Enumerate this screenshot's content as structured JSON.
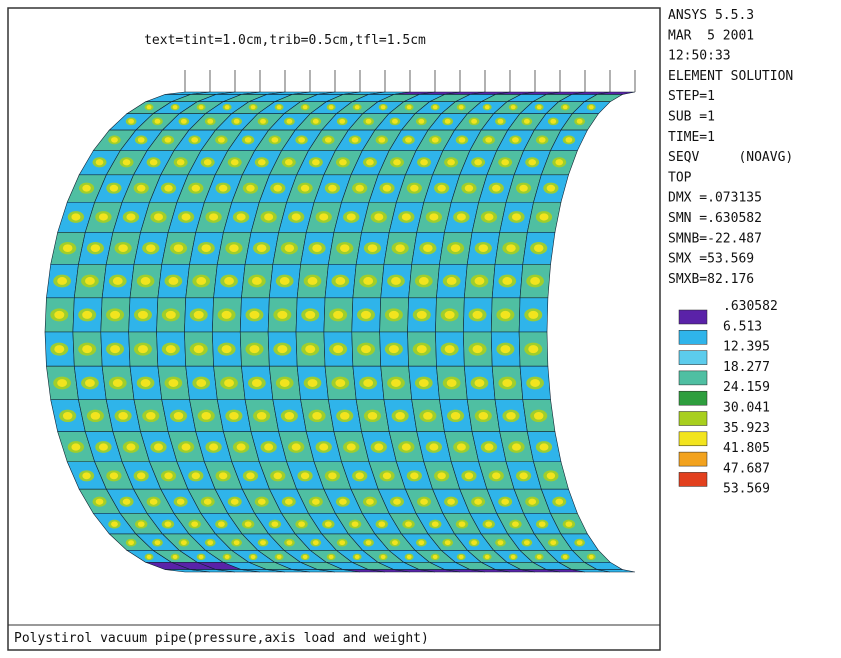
{
  "plot": {
    "label": "text=tint=1.0cm,trib=0.5cm,tfl=1.5cm",
    "caption": "Polystirol vacuum pipe(pressure,axis load and weight)"
  },
  "info": [
    "ANSYS 5.5.3",
    "MAR  5 2001",
    "12:50:33",
    "ELEMENT SOLUTION",
    "STEP=1",
    "SUB =1",
    "TIME=1",
    "SEQV     (NOAVG)",
    "TOP",
    "DMX =.073135",
    "SMN =.630582",
    "SMNB=-22.487",
    "SMX =53.569",
    "SMXB=82.176"
  ],
  "legend": {
    "levels": [
      ".630582",
      "6.513",
      "12.395",
      "18.277",
      "24.159",
      "30.041",
      "35.923",
      "41.805",
      "47.687",
      "53.569"
    ],
    "colors": [
      "#5a22a8",
      "#2fb4ea",
      "#5cccec",
      "#4fbfa2",
      "#2e9e3e",
      "#a8cf1e",
      "#f2e41e",
      "#f2a21e",
      "#e2401e"
    ]
  }
}
